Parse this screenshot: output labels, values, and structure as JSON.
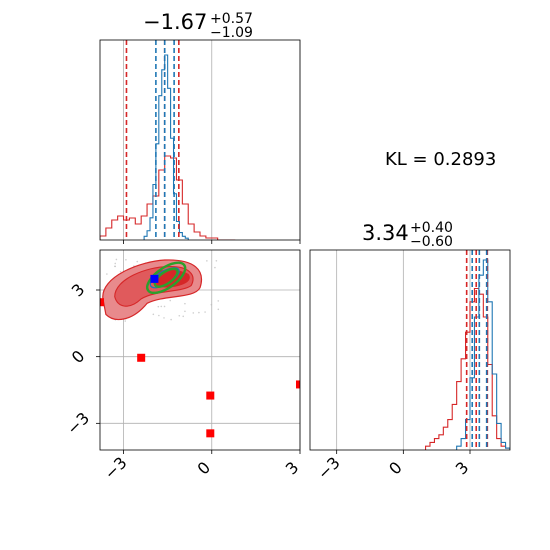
{
  "chart_data": {
    "type": "corner",
    "kl_text": "KL = 0.2893",
    "colors": {
      "blue": "#1f77b4",
      "red": "#d62728",
      "green": "#2ca02c",
      "marker_red": "#ff0000",
      "marker_blue": "#0000ff",
      "grid": "#b0b0b0"
    },
    "parameters": [
      {
        "range": [
          -3.8,
          3.0
        ],
        "ticks": [
          -3,
          0,
          3
        ],
        "tick_labels": [
          "−3",
          "0",
          "3"
        ],
        "title": {
          "median": "−1.67",
          "plus": "+0.57",
          "minus": "−1.09"
        },
        "blue_hist": {
          "bins": [
            -2.3,
            -2.2,
            -2.1,
            -2.0,
            -1.9,
            -1.8,
            -1.7,
            -1.6,
            -1.5,
            -1.4,
            -1.3,
            -1.2,
            -1.1,
            -1.0,
            -0.9
          ],
          "counts": [
            0.02,
            0.05,
            0.12,
            0.3,
            0.52,
            0.78,
            0.92,
            1.0,
            0.82,
            0.55,
            0.25,
            0.1,
            0.04,
            0.02,
            0.01
          ],
          "quantiles": [
            -1.9,
            -1.6,
            -1.28
          ]
        },
        "red_hist": {
          "bins": [
            -3.8,
            -3.6,
            -3.4,
            -3.2,
            -3.0,
            -2.8,
            -2.6,
            -2.4,
            -2.2,
            -2.0,
            -1.8,
            -1.6,
            -1.4,
            -1.2,
            -1.0,
            -0.8,
            -0.6,
            -0.4,
            -0.2,
            0.0,
            0.2,
            0.4,
            0.6
          ],
          "counts": [
            0.02,
            0.06,
            0.1,
            0.12,
            0.1,
            0.11,
            0.08,
            0.12,
            0.18,
            0.22,
            0.35,
            0.42,
            0.41,
            0.3,
            0.18,
            0.08,
            0.04,
            0.02,
            0.01,
            0.01,
            0.0,
            0.0,
            0.0
          ],
          "quantiles": [
            -2.9,
            -1.6,
            -1.12
          ]
        }
      },
      {
        "range": [
          -4.2,
          4.8
        ],
        "ticks": [
          -3,
          0,
          3
        ],
        "tick_labels": [
          "−3",
          "0",
          "3"
        ],
        "title": {
          "median": "3.34",
          "plus": "+0.40",
          "minus": "−0.60"
        },
        "blue_hist": {
          "bins": [
            2.4,
            2.6,
            2.8,
            3.0,
            3.2,
            3.4,
            3.6,
            3.8,
            4.0,
            4.2,
            4.4,
            4.6
          ],
          "counts": [
            0.02,
            0.06,
            0.16,
            0.38,
            0.7,
            0.92,
            1.0,
            0.78,
            0.4,
            0.14,
            0.04,
            0.01
          ],
          "quantiles": [
            3.1,
            3.42,
            3.75
          ]
        },
        "red_hist": {
          "bins": [
            1.0,
            1.2,
            1.4,
            1.6,
            1.8,
            2.0,
            2.2,
            2.4,
            2.6,
            2.8,
            3.0,
            3.2,
            3.4,
            3.6,
            3.8,
            4.0,
            4.2,
            4.4,
            4.6
          ],
          "counts": [
            0.02,
            0.04,
            0.06,
            0.08,
            0.12,
            0.16,
            0.24,
            0.36,
            0.48,
            0.62,
            0.78,
            0.85,
            0.82,
            0.7,
            0.45,
            0.18,
            0.06,
            0.02,
            0.01
          ],
          "quantiles": [
            2.85,
            3.28,
            3.78
          ]
        }
      }
    ],
    "scatter_2d": {
      "markers_red": [
        [
          -3.8,
          2.45
        ],
        [
          -2.4,
          -0.05
        ],
        [
          -0.05,
          -1.75
        ],
        [
          -0.05,
          -3.45
        ],
        [
          3.0,
          -1.25
        ]
      ],
      "marker_blue": [
        -1.95,
        3.5
      ],
      "green_ellipses": [
        {
          "cx": -1.55,
          "cy": 3.55,
          "rx": 0.75,
          "ry": 0.45,
          "angle": -35
        },
        {
          "cx": -1.55,
          "cy": 3.55,
          "rx": 0.45,
          "ry": 0.26,
          "angle": -35
        }
      ],
      "blue_contour": {
        "cx": -1.6,
        "cy": 3.55,
        "rx": 0.55,
        "ry": 0.3,
        "angle": -30
      }
    }
  }
}
